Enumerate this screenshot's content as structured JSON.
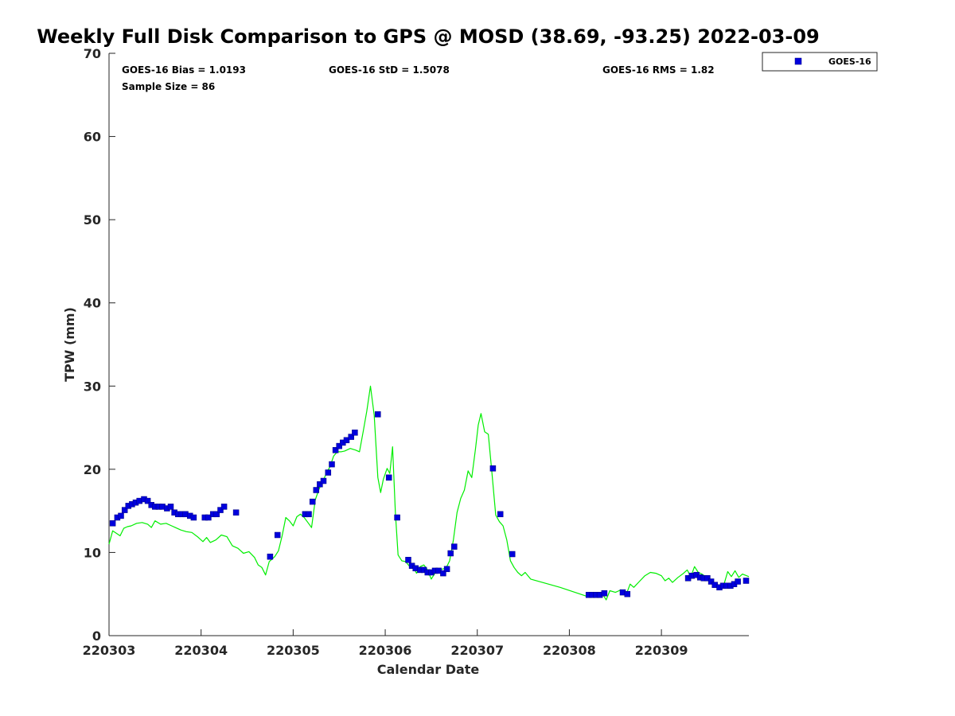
{
  "chart_data": {
    "type": "scatter",
    "title": "Weekly Full Disk Comparison to GPS @ MOSD (38.69, -93.25) 2022-03-09",
    "xlabel": "Calendar Date",
    "ylabel": "TPW (mm)",
    "xlim": [
      220303,
      220309.95
    ],
    "ylim": [
      0,
      70
    ],
    "x_ticks": [
      220303,
      220304,
      220305,
      220306,
      220307,
      220308,
      220309
    ],
    "x_tick_labels": [
      "220303",
      "220304",
      "220305",
      "220306",
      "220307",
      "220308",
      "220309"
    ],
    "y_ticks": [
      0,
      10,
      20,
      30,
      40,
      50,
      60,
      70
    ],
    "y_tick_labels": [
      "0",
      "10",
      "20",
      "30",
      "40",
      "50",
      "60",
      "70"
    ],
    "grid": false,
    "legend_position": "top-right",
    "stats": {
      "bias": "GOES-16 Bias = 1.0193",
      "std": "GOES-16 StD = 1.5078",
      "rms": "GOES-16 RMS = 1.82",
      "sample": "Sample Size = 86"
    },
    "series": [
      {
        "name": "GOES-16",
        "kind": "scatter",
        "color": "#0000dd",
        "points": [
          [
            220303.04,
            13.5
          ],
          [
            220303.09,
            14.2
          ],
          [
            220303.13,
            14.4
          ],
          [
            220303.17,
            15.1
          ],
          [
            220303.21,
            15.6
          ],
          [
            220303.25,
            15.8
          ],
          [
            220303.29,
            16.0
          ],
          [
            220303.33,
            16.2
          ],
          [
            220303.38,
            16.4
          ],
          [
            220303.42,
            16.2
          ],
          [
            220303.46,
            15.7
          ],
          [
            220303.5,
            15.5
          ],
          [
            220303.54,
            15.5
          ],
          [
            220303.58,
            15.5
          ],
          [
            220303.63,
            15.3
          ],
          [
            220303.67,
            15.5
          ],
          [
            220303.71,
            14.8
          ],
          [
            220303.75,
            14.6
          ],
          [
            220303.79,
            14.6
          ],
          [
            220303.83,
            14.6
          ],
          [
            220303.88,
            14.4
          ],
          [
            220303.92,
            14.2
          ],
          [
            220304.04,
            14.2
          ],
          [
            220304.08,
            14.2
          ],
          [
            220304.13,
            14.6
          ],
          [
            220304.17,
            14.6
          ],
          [
            220304.21,
            15.1
          ],
          [
            220304.25,
            15.5
          ],
          [
            220304.38,
            14.8
          ],
          [
            220304.75,
            9.5
          ],
          [
            220304.83,
            12.1
          ],
          [
            220305.13,
            14.6
          ],
          [
            220305.17,
            14.6
          ],
          [
            220305.21,
            16.1
          ],
          [
            220305.25,
            17.5
          ],
          [
            220305.29,
            18.2
          ],
          [
            220305.33,
            18.6
          ],
          [
            220305.38,
            19.6
          ],
          [
            220305.42,
            20.6
          ],
          [
            220305.46,
            22.3
          ],
          [
            220305.5,
            22.8
          ],
          [
            220305.54,
            23.2
          ],
          [
            220305.58,
            23.5
          ],
          [
            220305.63,
            23.9
          ],
          [
            220305.67,
            24.4
          ],
          [
            220305.92,
            26.6
          ],
          [
            220306.04,
            19.0
          ],
          [
            220306.13,
            14.2
          ],
          [
            220306.25,
            9.1
          ],
          [
            220306.29,
            8.4
          ],
          [
            220306.33,
            8.1
          ],
          [
            220306.38,
            7.9
          ],
          [
            220306.42,
            7.9
          ],
          [
            220306.46,
            7.6
          ],
          [
            220306.5,
            7.6
          ],
          [
            220306.54,
            7.8
          ],
          [
            220306.58,
            7.8
          ],
          [
            220306.63,
            7.5
          ],
          [
            220306.67,
            8.0
          ],
          [
            220306.71,
            9.9
          ],
          [
            220306.75,
            10.7
          ],
          [
            220307.17,
            20.1
          ],
          [
            220307.25,
            14.6
          ],
          [
            220307.38,
            9.8
          ],
          [
            220308.21,
            4.9
          ],
          [
            220308.25,
            4.9
          ],
          [
            220308.29,
            4.9
          ],
          [
            220308.33,
            4.9
          ],
          [
            220308.38,
            5.1
          ],
          [
            220308.58,
            5.2
          ],
          [
            220308.63,
            5.0
          ],
          [
            220309.29,
            6.9
          ],
          [
            220309.33,
            7.2
          ],
          [
            220309.38,
            7.3
          ],
          [
            220309.42,
            7.0
          ],
          [
            220309.46,
            6.9
          ],
          [
            220309.5,
            6.9
          ],
          [
            220309.54,
            6.5
          ],
          [
            220309.58,
            6.1
          ],
          [
            220309.63,
            5.8
          ],
          [
            220309.67,
            6.0
          ],
          [
            220309.71,
            6.0
          ],
          [
            220309.75,
            6.0
          ],
          [
            220309.79,
            6.2
          ],
          [
            220309.83,
            6.5
          ],
          [
            220309.92,
            6.6
          ]
        ]
      },
      {
        "name": "",
        "kind": "line",
        "color": "#00ee00",
        "points": [
          [
            220303.0,
            11.0
          ],
          [
            220303.04,
            12.6
          ],
          [
            220303.08,
            12.3
          ],
          [
            220303.12,
            12.0
          ],
          [
            220303.16,
            12.9
          ],
          [
            220303.2,
            13.1
          ],
          [
            220303.24,
            13.2
          ],
          [
            220303.3,
            13.5
          ],
          [
            220303.36,
            13.6
          ],
          [
            220303.42,
            13.4
          ],
          [
            220303.46,
            13.0
          ],
          [
            220303.5,
            13.8
          ],
          [
            220303.56,
            13.4
          ],
          [
            220303.62,
            13.5
          ],
          [
            220303.68,
            13.2
          ],
          [
            220303.72,
            13.0
          ],
          [
            220303.78,
            12.7
          ],
          [
            220303.84,
            12.5
          ],
          [
            220303.9,
            12.4
          ],
          [
            220303.96,
            11.9
          ],
          [
            220304.02,
            11.3
          ],
          [
            220304.06,
            11.8
          ],
          [
            220304.1,
            11.2
          ],
          [
            220304.16,
            11.5
          ],
          [
            220304.22,
            12.1
          ],
          [
            220304.28,
            11.9
          ],
          [
            220304.34,
            10.8
          ],
          [
            220304.4,
            10.5
          ],
          [
            220304.46,
            9.9
          ],
          [
            220304.52,
            10.1
          ],
          [
            220304.58,
            9.4
          ],
          [
            220304.62,
            8.5
          ],
          [
            220304.66,
            8.2
          ],
          [
            220304.7,
            7.3
          ],
          [
            220304.74,
            8.9
          ],
          [
            220304.8,
            9.5
          ],
          [
            220304.84,
            10.2
          ],
          [
            220304.88,
            12.0
          ],
          [
            220304.92,
            14.2
          ],
          [
            220304.96,
            13.8
          ],
          [
            220305.0,
            13.2
          ],
          [
            220305.04,
            14.3
          ],
          [
            220305.08,
            14.6
          ],
          [
            220305.12,
            14.2
          ],
          [
            220305.16,
            13.6
          ],
          [
            220305.2,
            13.0
          ],
          [
            220305.24,
            16.3
          ],
          [
            220305.28,
            17.6
          ],
          [
            220305.32,
            18.5
          ],
          [
            220305.36,
            19.5
          ],
          [
            220305.4,
            20.3
          ],
          [
            220305.44,
            21.6
          ],
          [
            220305.48,
            22.1
          ],
          [
            220305.52,
            22.1
          ],
          [
            220305.56,
            22.2
          ],
          [
            220305.62,
            22.5
          ],
          [
            220305.68,
            22.3
          ],
          [
            220305.72,
            22.1
          ],
          [
            220305.76,
            24.5
          ],
          [
            220305.8,
            27.0
          ],
          [
            220305.84,
            30.0
          ],
          [
            220305.88,
            26.5
          ],
          [
            220305.92,
            19.0
          ],
          [
            220305.95,
            17.2
          ],
          [
            220305.98,
            18.8
          ],
          [
            220306.02,
            20.1
          ],
          [
            220306.05,
            19.5
          ],
          [
            220306.08,
            22.7
          ],
          [
            220306.11,
            14.8
          ],
          [
            220306.14,
            9.7
          ],
          [
            220306.18,
            9.0
          ],
          [
            220306.22,
            8.9
          ],
          [
            220306.26,
            8.4
          ],
          [
            220306.3,
            8.3
          ],
          [
            220306.34,
            7.5
          ],
          [
            220306.38,
            8.3
          ],
          [
            220306.42,
            8.5
          ],
          [
            220306.46,
            7.9
          ],
          [
            220306.5,
            6.8
          ],
          [
            220306.54,
            7.5
          ],
          [
            220306.58,
            7.9
          ],
          [
            220306.62,
            8.0
          ],
          [
            220306.66,
            8.1
          ],
          [
            220306.7,
            9.0
          ],
          [
            220306.74,
            11.5
          ],
          [
            220306.78,
            14.8
          ],
          [
            220306.82,
            16.5
          ],
          [
            220306.86,
            17.5
          ],
          [
            220306.9,
            19.8
          ],
          [
            220306.94,
            19.0
          ],
          [
            220306.98,
            22.4
          ],
          [
            220307.01,
            25.3
          ],
          [
            220307.04,
            26.7
          ],
          [
            220307.08,
            24.5
          ],
          [
            220307.12,
            24.2
          ],
          [
            220307.16,
            19.5
          ],
          [
            220307.2,
            14.5
          ],
          [
            220307.24,
            13.7
          ],
          [
            220307.28,
            13.2
          ],
          [
            220307.32,
            11.5
          ],
          [
            220307.36,
            9.0
          ],
          [
            220307.4,
            8.2
          ],
          [
            220307.44,
            7.6
          ],
          [
            220307.48,
            7.2
          ],
          [
            220307.52,
            7.6
          ],
          [
            220307.58,
            6.8
          ],
          [
            220307.9,
            5.8
          ],
          [
            220308.2,
            4.7
          ],
          [
            220308.28,
            4.7
          ],
          [
            220308.36,
            5.0
          ],
          [
            220308.4,
            4.3
          ],
          [
            220308.44,
            5.4
          ],
          [
            220308.5,
            5.2
          ],
          [
            220308.56,
            5.5
          ],
          [
            220308.62,
            5.0
          ],
          [
            220308.66,
            6.2
          ],
          [
            220308.7,
            5.8
          ],
          [
            220308.76,
            6.5
          ],
          [
            220308.82,
            7.2
          ],
          [
            220308.88,
            7.6
          ],
          [
            220308.94,
            7.5
          ],
          [
            220309.0,
            7.2
          ],
          [
            220309.04,
            6.6
          ],
          [
            220309.08,
            6.9
          ],
          [
            220309.12,
            6.4
          ],
          [
            220309.18,
            7.0
          ],
          [
            220309.24,
            7.5
          ],
          [
            220309.28,
            7.9
          ],
          [
            220309.32,
            7.1
          ],
          [
            220309.36,
            8.3
          ],
          [
            220309.4,
            7.6
          ],
          [
            220309.44,
            7.4
          ],
          [
            220309.48,
            7.1
          ],
          [
            220309.52,
            6.7
          ],
          [
            220309.56,
            6.3
          ],
          [
            220309.6,
            6.0
          ],
          [
            220309.64,
            5.8
          ],
          [
            220309.68,
            6.2
          ],
          [
            220309.72,
            7.7
          ],
          [
            220309.76,
            7.1
          ],
          [
            220309.8,
            7.8
          ],
          [
            220309.84,
            7.0
          ],
          [
            220309.88,
            7.4
          ],
          [
            220309.95,
            7.1
          ]
        ]
      }
    ]
  }
}
